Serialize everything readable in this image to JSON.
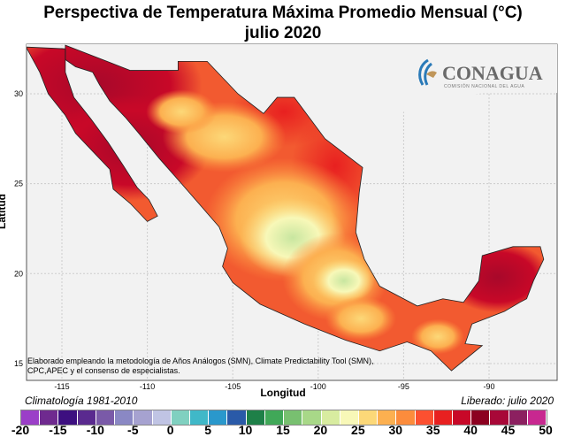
{
  "title": "Perspectiva de Temperatura Máxima Promedio Mensual (°C)",
  "subtitle": "julio 2020",
  "logo": {
    "name": "CONAGUA",
    "tagline": "COMISIÓN NACIONAL DEL AGUA"
  },
  "note": [
    "Elaborado empleando la metodología de Años Análogos (SMN), Climate Predictability Tool (SMN),",
    "CPC,APEC y el consenso de especialistas."
  ],
  "axes": {
    "xlabel": "Longitud",
    "ylabel": "Latitud",
    "xticks": [
      "-115",
      "-110",
      "-105",
      "-100",
      "-95",
      "-90"
    ],
    "yticks": [
      "30",
      "25",
      "20",
      "15"
    ]
  },
  "climatology": "Climatología 1981-2010",
  "released": "Liberado: julio 2020",
  "legend": {
    "labels": [
      "-20",
      "-15",
      "-10",
      "-5",
      "0",
      "5",
      "10",
      "15",
      "20",
      "25",
      "30",
      "35",
      "40",
      "45",
      "50"
    ],
    "colors": [
      "#9b3fc8",
      "#6f2a8f",
      "#3d0f80",
      "#5a2a8f",
      "#7a5aa8",
      "#8a88c4",
      "#a6a2d0",
      "#c0c4e4",
      "#80d0c0",
      "#40b8c8",
      "#2a98cc",
      "#2a5aa8",
      "#1e8048",
      "#40a858",
      "#78c070",
      "#a8d888",
      "#d8eca0",
      "#f8f8b8",
      "#fcd878",
      "#fcb050",
      "#fc8c3c",
      "#fc5030",
      "#e82020",
      "#c80828",
      "#8c0020",
      "#a80838",
      "#8c2060",
      "#c82890"
    ]
  }
}
